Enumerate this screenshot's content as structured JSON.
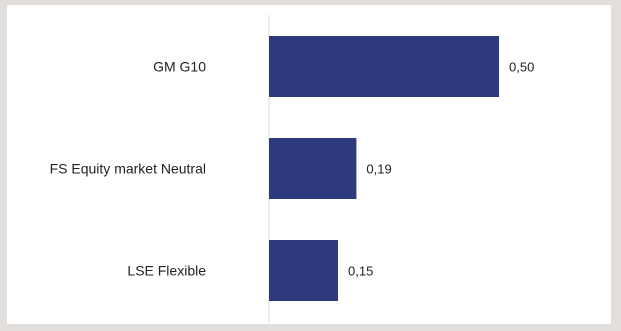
{
  "colors": {
    "background": "#e2dedc",
    "panel": "#ffffff",
    "bar": "#2e3a7e",
    "axis": "#d9d9d9",
    "text": "#222222"
  },
  "chart_data": {
    "type": "bar",
    "orientation": "horizontal",
    "categories": [
      "GM G10",
      "FS Equity market Neutral",
      "LSE Flexible"
    ],
    "values": [
      0.5,
      0.19,
      0.15
    ],
    "value_labels": [
      "0,50",
      "0,19",
      "0,15"
    ],
    "title": "",
    "xlabel": "",
    "ylabel": "",
    "xlim": [
      0,
      0.6
    ],
    "grid": false,
    "legend": "none"
  }
}
